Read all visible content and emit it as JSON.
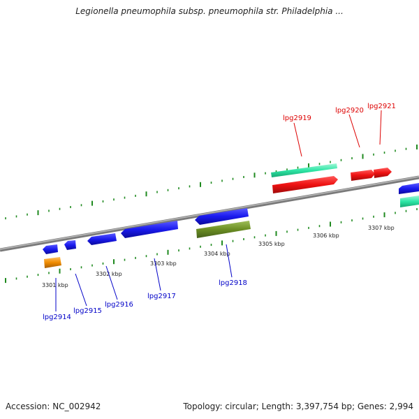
{
  "title": "Legionella pneumophila subsp. pneumophila str. Philadelphia ...",
  "accession_text": "Accession: NC_002942",
  "topology_text": "Topology: circular; Length: 3,397,754 bp; Genes: 2,994",
  "colors": {
    "backbone": "#8a8a8a",
    "tick": "#1f8a1f",
    "forward_label": "#dd0000",
    "reverse_label": "#0000c8",
    "blue": "#1a1aee",
    "red": "#ee1111",
    "teal": "#2ee6a6",
    "orange": "#f08c00",
    "olive": "#6b8e23"
  },
  "scale": {
    "tick_labels": [
      "3301 kbp",
      "3302 kbp",
      "3303 kbp",
      "3304 kbp",
      "3305 kbp",
      "3306 kbp",
      "3307 kbp"
    ]
  },
  "genes": [
    {
      "id": "lpg2914",
      "label": "lpg2914",
      "strand": "reverse"
    },
    {
      "id": "lpg2915",
      "label": "lpg2915",
      "strand": "reverse"
    },
    {
      "id": "lpg2916",
      "label": "lpg2916",
      "strand": "reverse"
    },
    {
      "id": "lpg2917",
      "label": "lpg2917",
      "strand": "reverse"
    },
    {
      "id": "lpg2918",
      "label": "lpg2918",
      "strand": "reverse"
    },
    {
      "id": "lpg2919",
      "label": "lpg2919",
      "strand": "forward"
    },
    {
      "id": "lpg2920",
      "label": "lpg2920",
      "strand": "forward"
    },
    {
      "id": "lpg2921",
      "label": "lpg2921",
      "strand": "forward"
    }
  ]
}
